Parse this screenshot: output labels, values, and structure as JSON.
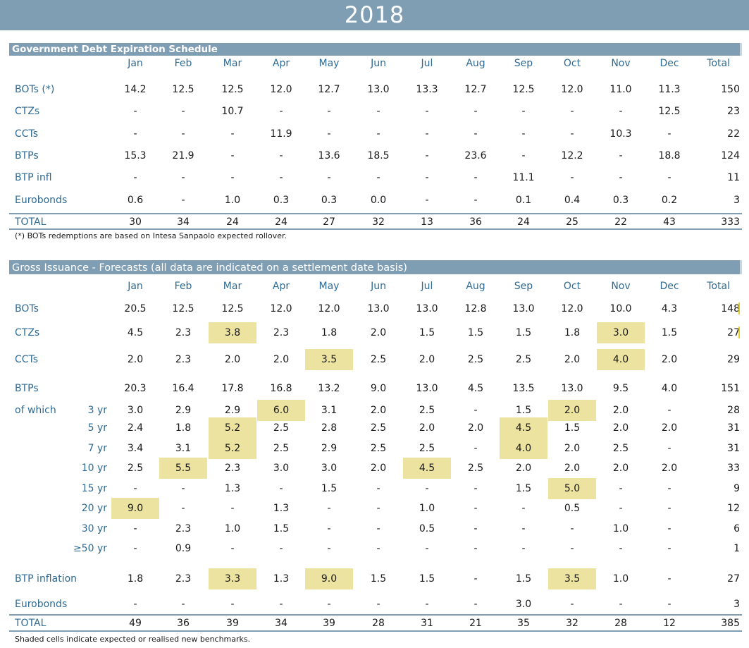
{
  "title": "2018",
  "months": [
    "Jan",
    "Feb",
    "Mar",
    "Apr",
    "May",
    "Jun",
    "Jul",
    "Aug",
    "Sep",
    "Oct",
    "Nov",
    "Dec",
    "Total"
  ],
  "expiration": {
    "heading": "Government Debt Expiration Schedule",
    "rows": [
      {
        "label": "BOTs (*)",
        "values": [
          "14.2",
          "12.5",
          "12.5",
          "12.0",
          "12.7",
          "13.0",
          "13.3",
          "12.7",
          "12.5",
          "12.0",
          "11.0",
          "11.3",
          "150"
        ]
      },
      {
        "label": "CTZs",
        "values": [
          "-",
          "-",
          "10.7",
          "-",
          "-",
          "-",
          "-",
          "-",
          "-",
          "-",
          "-",
          "12.5",
          "23"
        ]
      },
      {
        "label": "CCTs",
        "values": [
          "-",
          "-",
          "-",
          "11.9",
          "-",
          "-",
          "-",
          "-",
          "-",
          "-",
          "10.3",
          "-",
          "22"
        ]
      },
      {
        "label": "BTPs",
        "values": [
          "15.3",
          "21.9",
          "-",
          "-",
          "13.6",
          "18.5",
          "-",
          "23.6",
          "-",
          "12.2",
          "-",
          "18.8",
          "124"
        ]
      },
      {
        "label": "BTP infl",
        "values": [
          "-",
          "-",
          "-",
          "-",
          "-",
          "-",
          "-",
          "-",
          "11.1",
          "-",
          "-",
          "-",
          "11"
        ]
      },
      {
        "label": "Eurobonds",
        "values": [
          "0.6",
          "-",
          "1.0",
          "0.3",
          "0.3",
          "0.0",
          "-",
          "-",
          "0.1",
          "0.4",
          "0.3",
          "0.2",
          "3"
        ]
      }
    ],
    "total": {
      "label": "TOTAL",
      "values": [
        "30",
        "34",
        "24",
        "24",
        "27",
        "32",
        "13",
        "36",
        "24",
        "25",
        "22",
        "43",
        "333"
      ]
    },
    "footnote": "(*) BOTs redemptions are based on Intesa Sanpaolo expected rollover."
  },
  "issuance": {
    "heading": "Gross Issuance - Forecasts (all data are indicated on a settlement date basis)",
    "rows": [
      {
        "label": "BOTs",
        "sub": "",
        "values": [
          "20.5",
          "12.5",
          "12.5",
          "12.0",
          "12.0",
          "13.0",
          "13.0",
          "12.8",
          "13.0",
          "12.0",
          "10.0",
          "4.3",
          "148"
        ],
        "shaded": []
      },
      {
        "label": "CTZs",
        "sub": "",
        "values": [
          "4.5",
          "2.3",
          "3.8",
          "2.3",
          "1.8",
          "2.0",
          "1.5",
          "1.5",
          "1.5",
          "1.8",
          "3.0",
          "1.5",
          "27"
        ],
        "shaded": [
          2,
          10
        ]
      },
      {
        "label": "CCTs",
        "sub": "",
        "values": [
          "2.0",
          "2.3",
          "2.0",
          "2.0",
          "3.5",
          "2.5",
          "2.0",
          "2.5",
          "2.5",
          "2.0",
          "4.0",
          "2.0",
          "29"
        ],
        "shaded": [
          4,
          10
        ]
      },
      {
        "label": "BTPs",
        "sub": "",
        "values": [
          "20.3",
          "16.4",
          "17.8",
          "16.8",
          "13.2",
          "9.0",
          "13.0",
          "4.5",
          "13.5",
          "13.0",
          "9.5",
          "4.0",
          "151"
        ],
        "shaded": []
      },
      {
        "label": "of which",
        "sub": "3 yr",
        "values": [
          "3.0",
          "2.9",
          "2.9",
          "6.0",
          "3.1",
          "2.0",
          "2.5",
          "-",
          "1.5",
          "2.0",
          "2.0",
          "-",
          "28"
        ],
        "shaded": [
          3,
          9
        ]
      },
      {
        "label": "",
        "sub": "5 yr",
        "values": [
          "2.4",
          "1.8",
          "5.2",
          "2.5",
          "2.8",
          "2.5",
          "2.0",
          "2.0",
          "4.5",
          "1.5",
          "2.0",
          "2.0",
          "31"
        ],
        "shaded": [
          2,
          8
        ]
      },
      {
        "label": "",
        "sub": "7 yr",
        "values": [
          "3.4",
          "3.1",
          "5.2",
          "2.5",
          "2.9",
          "2.5",
          "2.5",
          "-",
          "4.0",
          "2.0",
          "2.5",
          "-",
          "31"
        ],
        "shaded": [
          2,
          8
        ]
      },
      {
        "label": "",
        "sub": "10 yr",
        "values": [
          "2.5",
          "5.5",
          "2.3",
          "3.0",
          "3.0",
          "2.0",
          "4.5",
          "2.5",
          "2.0",
          "2.0",
          "2.0",
          "2.0",
          "33"
        ],
        "shaded": [
          1,
          6
        ]
      },
      {
        "label": "",
        "sub": "15 yr",
        "values": [
          "-",
          "-",
          "1.3",
          "-",
          "1.5",
          "-",
          "-",
          "-",
          "1.5",
          "5.0",
          "-",
          "-",
          "9"
        ],
        "shaded": [
          9
        ]
      },
      {
        "label": "",
        "sub": "20 yr",
        "values": [
          "9.0",
          "-",
          "-",
          "1.3",
          "-",
          "-",
          "1.0",
          "-",
          "-",
          "0.5",
          "-",
          "-",
          "12"
        ],
        "shaded": [
          0
        ]
      },
      {
        "label": "",
        "sub": "30 yr",
        "values": [
          "-",
          "2.3",
          "1.0",
          "1.5",
          "-",
          "-",
          "0.5",
          "-",
          "-",
          "-",
          "1.0",
          "-",
          "6"
        ],
        "shaded": []
      },
      {
        "label": "",
        "sub": "≥50 yr",
        "values": [
          "-",
          "0.9",
          "-",
          "-",
          "-",
          "-",
          "-",
          "-",
          "-",
          "-",
          "-",
          "-",
          "1"
        ],
        "shaded": []
      },
      {
        "label": "BTP inflation",
        "sub": "",
        "values": [
          "1.8",
          "2.3",
          "3.3",
          "1.3",
          "9.0",
          "1.5",
          "1.5",
          "-",
          "1.5",
          "3.5",
          "1.0",
          "-",
          "27"
        ],
        "shaded": [
          2,
          4,
          9
        ]
      },
      {
        "label": "Eurobonds",
        "sub": "",
        "values": [
          "-",
          "-",
          "-",
          "-",
          "-",
          "-",
          "-",
          "-",
          "3.0",
          "-",
          "-",
          "-",
          "3"
        ],
        "shaded": []
      }
    ],
    "total": {
      "label": "TOTAL",
      "values": [
        "49",
        "36",
        "39",
        "34",
        "39",
        "28",
        "31",
        "21",
        "35",
        "32",
        "28",
        "12",
        "385"
      ]
    },
    "footnote": "Shaded cells indicate expected or realised new benchmarks."
  },
  "colors": {
    "header": "#7f9eb3",
    "shade": "#ece3a0",
    "label": "#2f6b94"
  }
}
